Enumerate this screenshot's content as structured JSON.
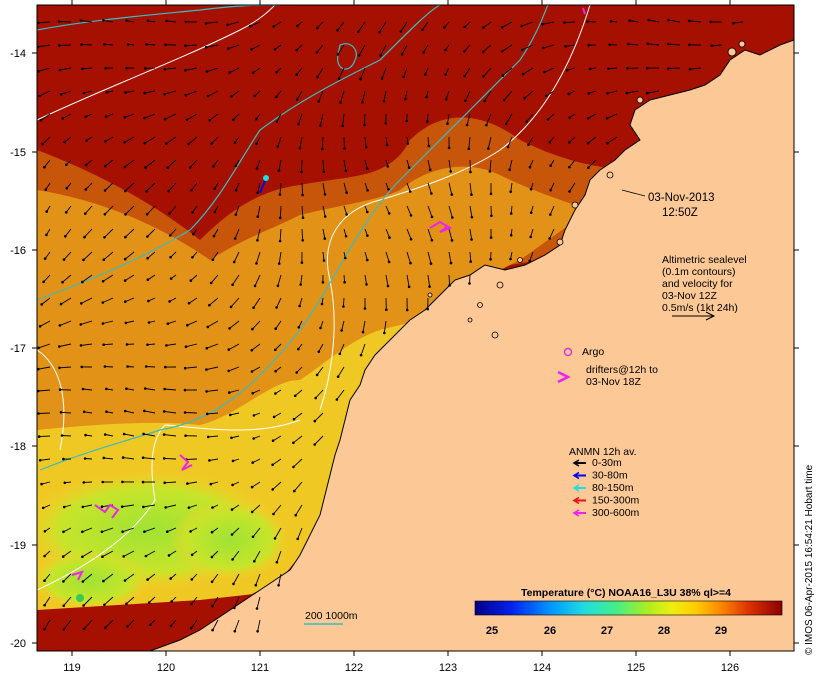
{
  "map": {
    "x_ticks": [
      "119",
      "120",
      "121",
      "122",
      "123",
      "124",
      "125",
      "126"
    ],
    "y_ticks": [
      "-14",
      "-15",
      "-16",
      "-17",
      "-18",
      "-19",
      "-20"
    ],
    "colors": {
      "land": "#fbc896",
      "sst_warm": "#a51000",
      "sst_mid": "#cc5c08",
      "sst_orange": "#e79a14",
      "sst_yellow": "#f2d12a",
      "sst_green": "#9fe334",
      "contour": "#ffffff",
      "isobath": "#3bbcc0",
      "argo": "#dd33dd",
      "drifter": "#ee22ee"
    }
  },
  "datetime": {
    "date": "03-Nov-2013",
    "time": "12:50Z"
  },
  "altimetry": {
    "lines": [
      "Altimetric sealevel",
      "(0.1m contours)",
      "and velocity for",
      "03-Nov 12Z",
      "0.5m/s (1kt 24h)"
    ]
  },
  "legend": {
    "argo": "Argo",
    "drifters_line1": "drifters@12h to",
    "drifters_line2": "03-Nov 18Z",
    "anmn_title": "ANMN 12h av.",
    "anmn_items": [
      {
        "label": "0-30m",
        "color": "#000000"
      },
      {
        "label": "30-80m",
        "color": "#0000ee"
      },
      {
        "label": "80-150m",
        "color": "#22dddd"
      },
      {
        "label": "150-300m",
        "color": "#ee1111"
      },
      {
        "label": "300-600m",
        "color": "#ee22ee"
      }
    ]
  },
  "isobath_label": "200 1000m",
  "colorbar": {
    "title": "Temperature (°C) NOAA16_L3U 38% ql>=4",
    "labels": [
      "25",
      "26",
      "27",
      "28",
      "29"
    ]
  },
  "credit": "© IMOS 06-Apr-2015 16:54:21 Hobart time"
}
